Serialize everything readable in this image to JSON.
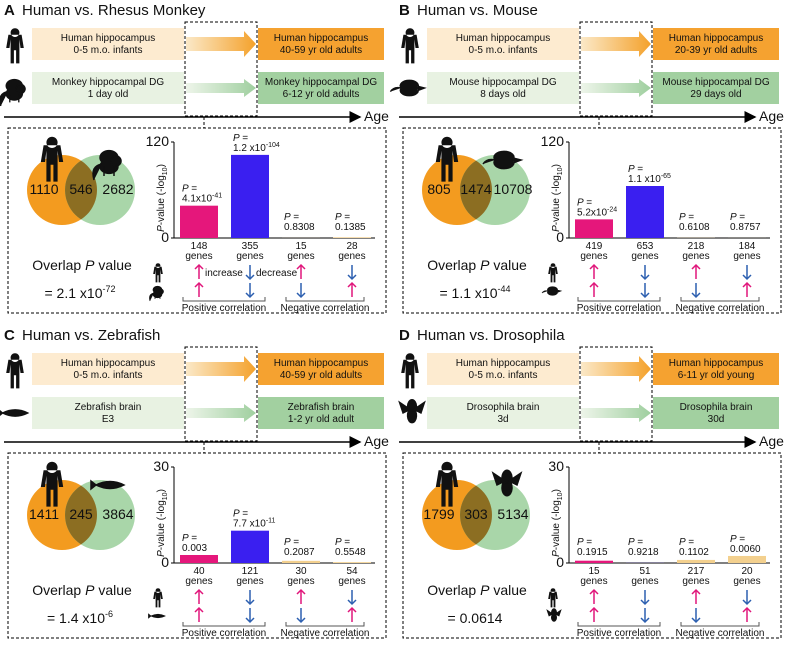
{
  "chart_data": [
    {
      "type": "bar",
      "letter": "A",
      "title": "Human vs. Rhesus Monkey",
      "human": [
        "Human hippocampus",
        "0-5 m.o. infants"
      ],
      "human_adult": [
        "Human hippocampus",
        "40-59 yr old adults"
      ],
      "species": [
        "Monkey hippocampal DG",
        "1 day old"
      ],
      "species_adult": [
        "Monkey hippocampal DG",
        "6-12 yr old adults"
      ],
      "age_label": "Age",
      "venn": [
        1110,
        546,
        2682
      ],
      "overlap_title": [
        "Overlap ",
        "P",
        " value"
      ],
      "overlap_p": {
        "lead": "= 2.1 x10",
        "exp": "-72"
      },
      "y_label": [
        "P",
        "-value (-log",
        "10",
        ")"
      ],
      "ylim": [
        0,
        120
      ],
      "yticks": [
        0,
        120
      ],
      "values": [
        40.4,
        103.9,
        0.08,
        0.86
      ],
      "colors": [
        "#e5177b",
        "#3a1ff0",
        "#f3d08e",
        "#f3d08e"
      ],
      "p_labels": [
        {
          "lead": "P =",
          "base": "4.1x10",
          "exp": "-41"
        },
        {
          "lead": "P =",
          "base": "1.2 x10",
          "exp": "-104"
        },
        {
          "lead": "P =",
          "base": "0.8308"
        },
        {
          "lead": "P =",
          "base": "0.1385"
        }
      ],
      "gene_counts": [
        148,
        355,
        15,
        28
      ],
      "genes_word": "genes",
      "increase": "increase",
      "decrease": "decrease",
      "positive_label": "Positive correlation",
      "negative_label": "Negative correlation"
    },
    {
      "type": "bar",
      "letter": "B",
      "title": "Human vs. Mouse",
      "human": [
        "Human hippocampus",
        "0-5 m.o. infants"
      ],
      "human_adult": [
        "Human hippocampus",
        "20-39 yr old adults"
      ],
      "species": [
        "Mouse hippocampal DG",
        "8 days old"
      ],
      "species_adult": [
        "Mouse hippocampal DG",
        "29 days old"
      ],
      "age_label": "Age",
      "venn": [
        805,
        1474,
        10708
      ],
      "overlap_title": [
        "Overlap ",
        "P",
        " value"
      ],
      "overlap_p": {
        "lead": "= 1.1 x10",
        "exp": "-44"
      },
      "y_label": [
        "P",
        "-value (-log",
        "10",
        ")"
      ],
      "ylim": [
        0,
        120
      ],
      "yticks": [
        0,
        120
      ],
      "values": [
        23.3,
        65.0,
        0.21,
        0.06
      ],
      "colors": [
        "#e5177b",
        "#3a1ff0",
        "#f3d08e",
        "#f3d08e"
      ],
      "p_labels": [
        {
          "lead": "P =",
          "base": "5.2x10",
          "exp": "-24"
        },
        {
          "lead": "P =",
          "base": "1.1 x10",
          "exp": "-65"
        },
        {
          "lead": "P =",
          "base": "0.6108"
        },
        {
          "lead": "P =",
          "base": "0.8757"
        }
      ],
      "gene_counts": [
        419,
        653,
        218,
        184
      ],
      "genes_word": "genes",
      "positive_label": "Positive correlation",
      "negative_label": "Negative correlation"
    },
    {
      "type": "bar",
      "letter": "C",
      "title": "Human vs. Zebrafish",
      "human": [
        "Human hippocampus",
        "0-5 m.o. infants"
      ],
      "human_adult": [
        "Human hippocampus",
        "40-59 yr old adults"
      ],
      "species": [
        "Zebrafish brain",
        "E3"
      ],
      "species_adult": [
        "Zebrafish brain",
        "1-2 yr old adult"
      ],
      "age_label": "Age",
      "venn": [
        1411,
        245,
        3864
      ],
      "overlap_title": [
        "Overlap ",
        "P",
        " value"
      ],
      "overlap_p": {
        "lead": "= 1.4 x10",
        "exp": "-6"
      },
      "y_label": [
        "P",
        "-value (-log",
        "10",
        ")"
      ],
      "ylim": [
        0,
        30
      ],
      "yticks": [
        0,
        30
      ],
      "values": [
        2.5,
        10.1,
        0.68,
        0.26
      ],
      "colors": [
        "#e5177b",
        "#3a1ff0",
        "#f3d08e",
        "#f3d08e"
      ],
      "p_labels": [
        {
          "lead": "P =",
          "base": "0.003"
        },
        {
          "lead": "P =",
          "base": "7.7 x10",
          "exp": "-11"
        },
        {
          "lead": "P =",
          "base": "0.2087"
        },
        {
          "lead": "P =",
          "base": "0.5548"
        }
      ],
      "gene_counts": [
        40,
        121,
        30,
        54
      ],
      "genes_word": "genes",
      "positive_label": "Positive correlation",
      "negative_label": "Negative correlation"
    },
    {
      "type": "bar",
      "letter": "D",
      "title": "Human vs. Drosophila",
      "human": [
        "Human hippocampus",
        "0-5 m.o. infants"
      ],
      "human_adult": [
        "Human hippocampus",
        "6-11 yr old young"
      ],
      "species": [
        "Drosophila brain",
        "3d"
      ],
      "species_adult": [
        "Drosophila brain",
        "30d"
      ],
      "age_label": "Age",
      "venn": [
        1799,
        303,
        5134
      ],
      "overlap_title": [
        "Overlap ",
        "P",
        " value"
      ],
      "overlap_p": {
        "lead": "= 0.0614"
      },
      "y_label": [
        "P",
        "-value (-log",
        "10",
        ")"
      ],
      "ylim": [
        0,
        30
      ],
      "yticks": [
        0,
        30
      ],
      "values": [
        0.72,
        0.035,
        0.96,
        2.2
      ],
      "colors": [
        "#e5177b",
        "#3a1ff0",
        "#f3d08e",
        "#f3d08e"
      ],
      "p_labels": [
        {
          "lead": "P =",
          "base": "0.1915"
        },
        {
          "lead": "P =",
          "base": "0.9218"
        },
        {
          "lead": "P =",
          "base": "0.1102"
        },
        {
          "lead": "P =",
          "base": "0.0060"
        }
      ],
      "gene_counts": [
        15,
        51,
        217,
        20
      ],
      "genes_word": "genes",
      "positive_label": "Positive correlation",
      "negative_label": "Negative correlation"
    }
  ]
}
